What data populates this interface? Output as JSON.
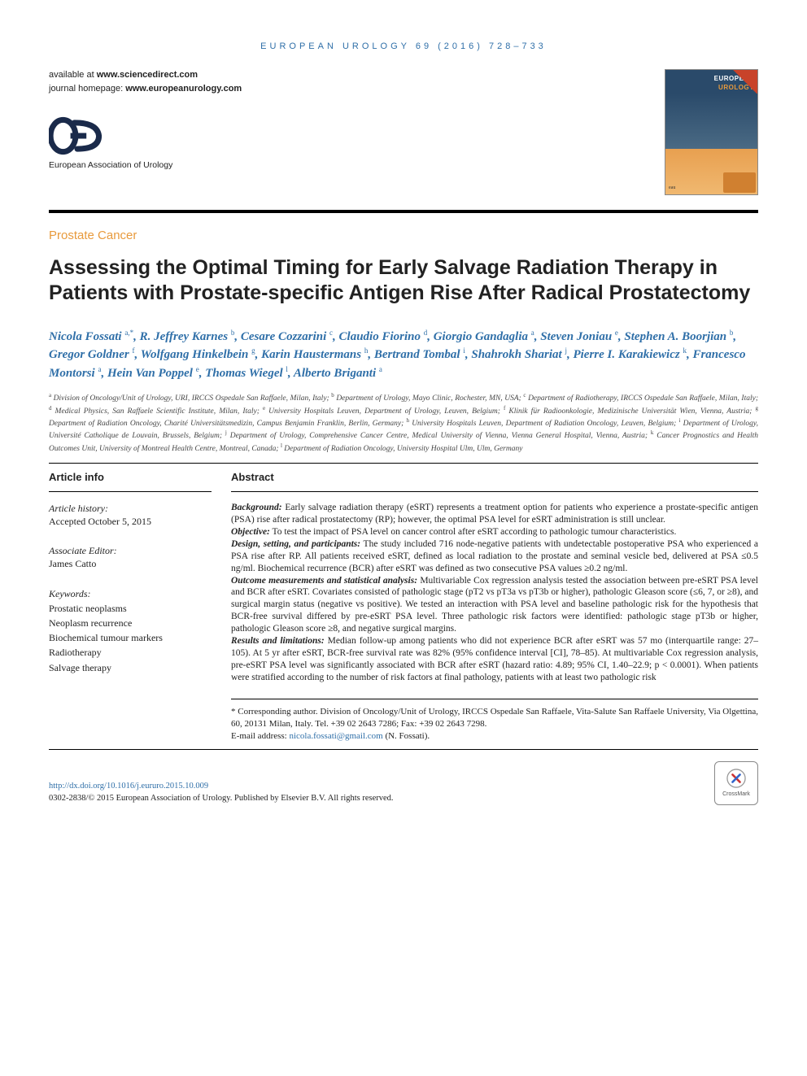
{
  "journal_header": "EUROPEAN UROLOGY 69 (2016) 728–733",
  "availability": {
    "line1_prefix": "available at ",
    "line1_url": "www.sciencedirect.com",
    "line2_prefix": "journal homepage: ",
    "line2_url": "www.europeanurology.com"
  },
  "logo_text": "European Association of Urology",
  "cover": {
    "title_l1": "EUROPEAN",
    "title_l2": "UROLOGY",
    "mini": "eau"
  },
  "section_label": "Prostate Cancer",
  "title": "Assessing the Optimal Timing for Early Salvage Radiation Therapy in Patients with Prostate-specific Antigen Rise After Radical Prostatectomy",
  "authors_html": "Nicola Fossati <sup>a,*</sup>, R. Jeffrey Karnes <sup>b</sup>, Cesare Cozzarini <sup>c</sup>, Claudio Fiorino <sup>d</sup>, Giorgio Gandaglia <sup>a</sup>, Steven Joniau <sup>e</sup>, Stephen A. Boorjian <sup>b</sup>, Gregor Goldner <sup>f</sup>, Wolfgang Hinkelbein <sup>g</sup>, Karin Haustermans <sup>h</sup>, Bertrand Tombal <sup>i</sup>, Shahrokh Shariat <sup>j</sup>, Pierre I. Karakiewicz <sup>k</sup>, Francesco Montorsi <sup>a</sup>, Hein Van Poppel <sup>e</sup>, Thomas Wiegel <sup>l</sup>, Alberto Briganti <sup>a</sup>",
  "affiliations_html": "<sup>a</sup> Division of Oncology/Unit of Urology, URI, IRCCS Ospedale San Raffaele, Milan, Italy; <sup>b</sup> Department of Urology, Mayo Clinic, Rochester, MN, USA; <sup>c</sup> Department of Radiotherapy, IRCCS Ospedale San Raffaele, Milan, Italy; <sup>d</sup> Medical Physics, San Raffaele Scientific Institute, Milan, Italy; <sup>e</sup> University Hospitals Leuven, Department of Urology, Leuven, Belgium; <sup>f</sup> Klinik für Radioonkologie, Medizinische Universität Wien, Vienna, Austria; <sup>g</sup> Department of Radiation Oncology, Charité Universitätsmedizin, Campus Benjamin Franklin, Berlin, Germany; <sup>h</sup> University Hospitals Leuven, Department of Radiation Oncology, Leuven, Belgium; <sup>i</sup> Department of Urology, Université Catholique de Louvain, Brussels, Belgium; <sup>j</sup> Department of Urology, Comprehensive Cancer Centre, Medical University of Vienna, Vienna General Hospital, Vienna, Austria; <sup>k</sup> Cancer Prognostics and Health Outcomes Unit, University of Montreal Health Centre, Montreal, Canada; <sup>l</sup> Department of Radiation Oncology, University Hospital Ulm, Ulm, Germany",
  "article_info": {
    "heading": "Article info",
    "history_label": "Article history:",
    "history_value": "Accepted October 5, 2015",
    "editor_label": "Associate Editor:",
    "editor_value": "James Catto",
    "keywords_label": "Keywords:",
    "keywords": [
      "Prostatic neoplasms",
      "Neoplasm recurrence",
      "Biochemical tumour markers",
      "Radiotherapy",
      "Salvage therapy"
    ]
  },
  "abstract": {
    "heading": "Abstract",
    "background_label": "Background:",
    "background_text": " Early salvage radiation therapy (eSRT) represents a treatment option for patients who experience a prostate-specific antigen (PSA) rise after radical prostatectomy (RP); however, the optimal PSA level for eSRT administration is still unclear.",
    "objective_label": "Objective:",
    "objective_text": " To test the impact of PSA level on cancer control after eSRT according to pathologic tumour characteristics.",
    "design_label": "Design, setting, and participants:",
    "design_text": " The study included 716 node-negative patients with undetectable postoperative PSA who experienced a PSA rise after RP. All patients received eSRT, defined as local radiation to the prostate and seminal vesicle bed, delivered at PSA ≤0.5 ng/ml. Biochemical recurrence (BCR) after eSRT was defined as two consecutive PSA values ≥0.2 ng/ml.",
    "outcome_label": "Outcome measurements and statistical analysis:",
    "outcome_text": " Multivariable Cox regression analysis tested the association between pre-eSRT PSA level and BCR after eSRT. Covariates consisted of pathologic stage (pT2 vs pT3a vs pT3b or higher), pathologic Gleason score (≤6, 7, or ≥8), and surgical margin status (negative vs positive). We tested an interaction with PSA level and baseline pathologic risk for the hypothesis that BCR-free survival differed by pre-eSRT PSA level. Three pathologic risk factors were identified: pathologic stage pT3b or higher, pathologic Gleason score ≥8, and negative surgical margins.",
    "results_label": "Results and limitations:",
    "results_text": " Median follow-up among patients who did not experience BCR after eSRT was 57 mo (interquartile range: 27–105). At 5 yr after eSRT, BCR-free survival rate was 82% (95% confidence interval [CI], 78–85). At multivariable Cox regression analysis, pre-eSRT PSA level was significantly associated with BCR after eSRT (hazard ratio: 4.89; 95% CI, 1.40–22.9; p < 0.0001). When patients were stratified according to the number of risk factors at final pathology, patients with at least two pathologic risk"
  },
  "footnote": {
    "corr": "* Corresponding author. Division of Oncology/Unit of Urology, IRCCS Ospedale San Raffaele, Vita-Salute San Raffaele University, Via Olgettina, 60, 20131 Milan, Italy. Tel. +39 02 2643 7286; Fax: +39 02 2643 7298.",
    "email_label": "E-mail address: ",
    "email": "nicola.fossati@gmail.com",
    "email_suffix": " (N. Fossati)."
  },
  "bottom": {
    "doi": "http://dx.doi.org/10.1016/j.eururo.2015.10.009",
    "copyright": "0302-2838/© 2015 European Association of Urology. Published by Elsevier B.V. All rights reserved.",
    "crossmark": "CrossMark"
  },
  "colors": {
    "accent_orange": "#e89a3c",
    "link_blue": "#2f6fa8",
    "text": "#222222"
  }
}
